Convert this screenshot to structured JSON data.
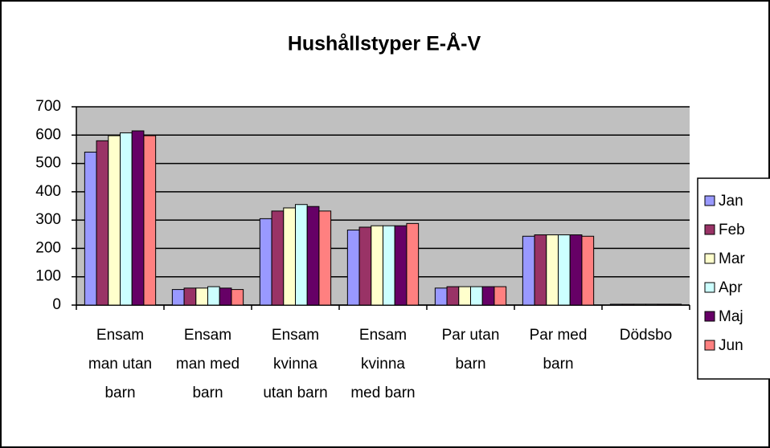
{
  "chart_data": {
    "type": "bar",
    "title": "Hushållstyper E-Å-V",
    "categories": [
      "Ensam man utan barn",
      "Ensam man med barn",
      "Ensam kvinna utan barn",
      "Ensam kvinna med barn",
      "Par utan barn",
      "Par med barn",
      "Dödsbo"
    ],
    "series": [
      {
        "name": "Jan",
        "color": "#9999ff",
        "values": [
          540,
          55,
          305,
          265,
          60,
          243,
          3
        ]
      },
      {
        "name": "Feb",
        "color": "#993366",
        "values": [
          580,
          60,
          332,
          275,
          65,
          248,
          3
        ]
      },
      {
        "name": "Mar",
        "color": "#ffffcc",
        "values": [
          598,
          60,
          343,
          280,
          65,
          248,
          3
        ]
      },
      {
        "name": "Apr",
        "color": "#ccffff",
        "values": [
          608,
          65,
          355,
          280,
          65,
          248,
          3
        ]
      },
      {
        "name": "Maj",
        "color": "#660066",
        "values": [
          615,
          60,
          348,
          280,
          65,
          248,
          3
        ]
      },
      {
        "name": "Jun",
        "color": "#ff8080",
        "values": [
          598,
          55,
          332,
          288,
          65,
          243,
          3
        ]
      }
    ],
    "ylim": [
      0,
      700
    ],
    "yticks": [
      0,
      100,
      200,
      300,
      400,
      500,
      600,
      700
    ],
    "grid": true,
    "legend": "right",
    "plot_background": "#c0c0c0"
  }
}
